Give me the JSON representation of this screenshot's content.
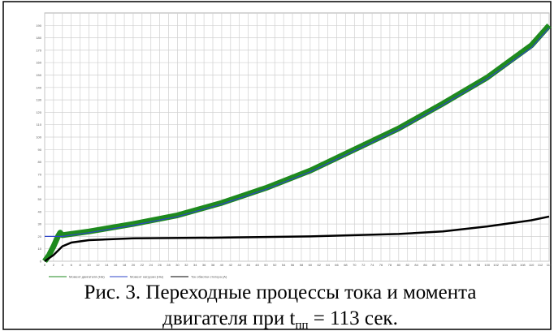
{
  "chart_data": {
    "type": "line",
    "xlim": [
      0,
      114
    ],
    "xticks": [
      0,
      2,
      4,
      6,
      8,
      10,
      12,
      14,
      16,
      18,
      20,
      22,
      24,
      26,
      28,
      30,
      32,
      34,
      36,
      38,
      40,
      42,
      44,
      46,
      48,
      50,
      52,
      54,
      56,
      58,
      60,
      62,
      64,
      66,
      68,
      70,
      72,
      74,
      76,
      78,
      80,
      82,
      84,
      86,
      88,
      90,
      92,
      94,
      96,
      98,
      100,
      102,
      104,
      106,
      108,
      110,
      112,
      114
    ],
    "ylim": [
      0,
      200
    ],
    "yticks": [
      0,
      10,
      20,
      30,
      40,
      50,
      60,
      70,
      80,
      90,
      100,
      110,
      120,
      130,
      140,
      150,
      160,
      170,
      180,
      190
    ],
    "grid": true,
    "series": [
      {
        "name": "Момент двигателя (Нм)",
        "color": "#1e8a1e",
        "x": [
          0,
          1,
          2,
          3,
          3.5,
          4,
          10,
          20,
          30,
          40,
          50,
          60,
          70,
          80,
          90,
          100,
          110,
          114
        ],
        "values": [
          0,
          5,
          12,
          20,
          23,
          21,
          24,
          30,
          37,
          47,
          59,
          73,
          90,
          107,
          127,
          148,
          174,
          190
        ]
      },
      {
        "name": "Момент нагрузки (Нм)",
        "color": "#2f45c8",
        "x": [
          0,
          4,
          10,
          20,
          30,
          40,
          50,
          60,
          70,
          80,
          90,
          100,
          110,
          114
        ],
        "values": [
          20,
          20,
          23,
          29,
          36,
          46,
          58,
          72,
          89,
          106,
          126,
          147,
          172,
          188
        ]
      },
      {
        "name": "Ток обмотки статора (А)",
        "color": "#000000",
        "x": [
          0,
          2,
          4,
          6,
          10,
          20,
          40,
          60,
          80,
          90,
          100,
          110,
          114
        ],
        "values": [
          0,
          5,
          12,
          15,
          17,
          18.5,
          19,
          20,
          22,
          24,
          28,
          33,
          36
        ]
      }
    ]
  },
  "caption": {
    "line1": "Рис. 3. Переходные процессы тока и момента",
    "line2_pre": "двигателя при t",
    "line2_sub": "пп",
    "line2_post": " = 113 сек."
  }
}
